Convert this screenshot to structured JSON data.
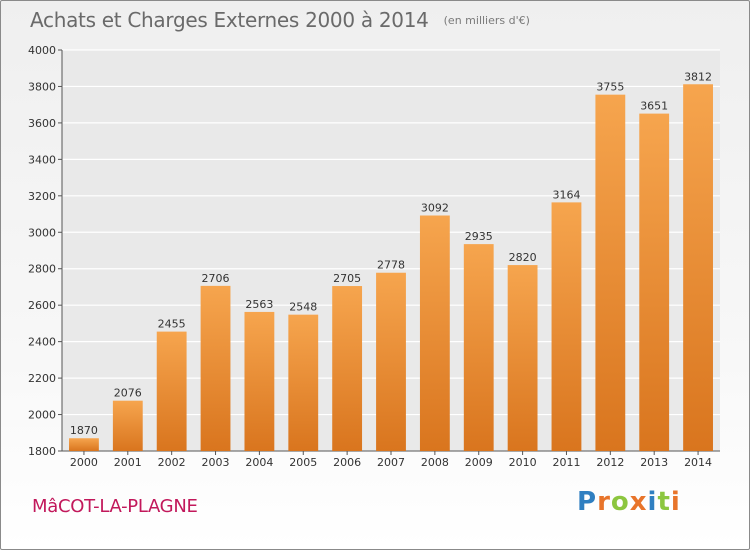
{
  "header": {
    "title": "Achats et Charges Externes 2000 à 2014",
    "subtitle": "(en milliers d'€)"
  },
  "footer": {
    "commune": "MâCOT-LA-PLAGNE",
    "brand": "Proxiti",
    "brand_letters": [
      {
        "ch": "P",
        "color": "#2f7fc1"
      },
      {
        "ch": "r",
        "color": "#e8742a"
      },
      {
        "ch": "o",
        "color": "#8cc63f"
      },
      {
        "ch": "x",
        "color": "#e8742a"
      },
      {
        "ch": "i",
        "color": "#2f7fc1"
      },
      {
        "ch": "t",
        "color": "#8cc63f"
      },
      {
        "ch": "i",
        "color": "#e8742a"
      }
    ]
  },
  "colors": {
    "bar_light": "#f6a54e",
    "bar_dark": "#d9751e",
    "gridline": "#ffffff",
    "axis_text": "#333333"
  },
  "chart_data": {
    "type": "bar",
    "title": "Achats et Charges Externes 2000 à 2014",
    "subtitle": "(en milliers d'€)",
    "categories": [
      "2000",
      "2001",
      "2002",
      "2003",
      "2004",
      "2005",
      "2006",
      "2007",
      "2008",
      "2009",
      "2010",
      "2011",
      "2012",
      "2013",
      "2014"
    ],
    "values": [
      1870,
      2076,
      2455,
      2706,
      2563,
      2548,
      2705,
      2778,
      3092,
      2935,
      2820,
      3164,
      3755,
      3651,
      3812
    ],
    "ylim": [
      1800,
      4000
    ],
    "yticks": [
      1800,
      2000,
      2200,
      2400,
      2600,
      2800,
      3000,
      3200,
      3400,
      3600,
      3800,
      4000
    ],
    "grid": true,
    "data_labels": true,
    "xlabel": "",
    "ylabel": ""
  }
}
